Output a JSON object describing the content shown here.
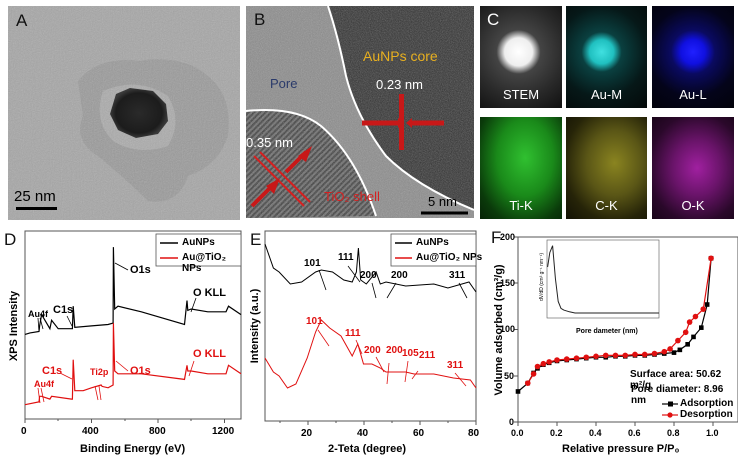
{
  "figure": {
    "panels": {
      "A": {
        "label": "A",
        "type": "TEM image",
        "scale_bar": "25 nm"
      },
      "B": {
        "label": "B",
        "type": "HRTEM image",
        "annotations": {
          "core": "AuNPs core",
          "pore": "Pore",
          "shell": "TiO₂ shell",
          "core_spacing": "0.23 nm",
          "shell_spacing": "0.35 nm"
        },
        "scale_bar": "5 nm",
        "colors": {
          "core_label": "#e8b020",
          "pore_label": "#2a3a6a",
          "shell_label": "#d42020",
          "arrow": "#c81818"
        }
      },
      "C": {
        "label": "C",
        "type": "EDS elemental mapping",
        "maps": [
          {
            "label": "STEM",
            "color": "#ffffff"
          },
          {
            "label": "Au-M",
            "color": "#20d8d8"
          },
          {
            "label": "Au-L",
            "color": "#1a1aff"
          },
          {
            "label": "Ti-K",
            "color": "#22cc22"
          },
          {
            "label": "C-K",
            "color": "#b8b020"
          },
          {
            "label": "O-K",
            "color": "#c020c0"
          }
        ]
      },
      "D": {
        "label": "D"
      },
      "E": {
        "label": "E"
      },
      "F": {
        "label": "F"
      }
    }
  },
  "chart_data": [
    {
      "panel": "D",
      "type": "line",
      "title": "",
      "xlabel": "Binding Energy (eV)",
      "ylabel": "XPS Intensity",
      "xlim": [
        0,
        1300
      ],
      "xticks": [
        "0",
        "400",
        "800",
        "1200"
      ],
      "legend": [
        "AuNPs",
        "Au@TiO₂ NPs"
      ],
      "legend_position": "upper right",
      "series": [
        {
          "name": "AuNPs",
          "color": "#000000",
          "annotations": [
            "Au4f",
            "C1s",
            "O1s",
            "O KLL"
          ],
          "x": [
            0,
            30,
            84,
            88,
            100,
            150,
            160,
            200,
            285,
            290,
            300,
            400,
            500,
            530,
            532,
            540,
            560,
            700,
            960,
            975,
            980,
            1000,
            1100,
            1210,
            1225,
            1300
          ],
          "y": [
            58,
            59,
            60,
            64,
            72,
            62,
            68,
            62,
            62,
            78,
            63,
            64,
            65,
            66,
            120,
            76,
            78,
            74,
            65,
            82,
            75,
            76,
            74,
            74,
            78,
            72
          ]
        },
        {
          "name": "Au@TiO₂ NPs",
          "color": "#e01010",
          "annotations": [
            "Au4f",
            "C1s",
            "Ti2p",
            "O1s",
            "O KLL"
          ],
          "x": [
            0,
            84,
            88,
            100,
            150,
            160,
            280,
            285,
            290,
            300,
            350,
            400,
            458,
            464,
            500,
            530,
            532,
            540,
            560,
            700,
            960,
            975,
            980,
            1000,
            1100,
            1210,
            1225,
            1300
          ],
          "y": [
            8,
            10,
            14,
            14,
            12,
            14,
            12,
            12,
            40,
            18,
            18,
            20,
            22,
            21,
            20,
            22,
            66,
            32,
            30,
            30,
            26,
            36,
            32,
            32,
            30,
            30,
            36,
            30
          ]
        }
      ]
    },
    {
      "panel": "E",
      "type": "line",
      "title": "",
      "xlabel": "2-Teta (degree)",
      "ylabel": "Intensity (a.u.)",
      "xlim": [
        5,
        80
      ],
      "xticks": [
        "20",
        "40",
        "60",
        "80"
      ],
      "legend": [
        "AuNPs",
        "Au@TiO₂ NPs"
      ],
      "legend_position": "upper right",
      "series": [
        {
          "name": "AuNPs",
          "color": "#000000",
          "peak_labels": [
            {
              "label": "101",
              "x": 23
            },
            {
              "label": "111",
              "x": 38
            },
            {
              "label": "200",
              "x": 44.5
            },
            {
              "label": "200",
              "x": 48
            },
            {
              "label": "311",
              "x": 77.5
            }
          ],
          "x": [
            5,
            8,
            10,
            14,
            18,
            23,
            25,
            29,
            33,
            36,
            37.5,
            38.2,
            39,
            41,
            44.5,
            46,
            48,
            55,
            65,
            70,
            77.5,
            80
          ],
          "y": [
            92,
            80,
            78,
            72,
            73,
            78,
            79,
            78,
            74,
            73,
            78,
            90,
            74,
            72,
            78,
            72,
            73,
            71,
            72,
            70,
            73,
            68
          ]
        },
        {
          "name": "Au@TiO₂ NPs",
          "color": "#e01010",
          "peak_labels": [
            {
              "label": "101",
              "x": 25
            },
            {
              "label": "111",
              "x": 38
            },
            {
              "label": "200",
              "x": 43
            },
            {
              "label": "200",
              "x": 48
            },
            {
              "label": "105",
              "x": 55
            },
            {
              "label": "211",
              "x": 56.5
            },
            {
              "label": "311",
              "x": 78
            }
          ],
          "x": [
            5,
            8,
            10,
            13,
            16,
            20,
            23,
            25,
            28,
            32,
            36,
            38,
            40,
            43,
            46,
            48,
            52,
            55,
            58,
            65,
            72,
            78,
            80
          ],
          "y": [
            35,
            28,
            26,
            20,
            22,
            35,
            48,
            54,
            50,
            46,
            36,
            42,
            32,
            32,
            30,
            28,
            28,
            28,
            27,
            27,
            25,
            24,
            20
          ]
        }
      ]
    },
    {
      "panel": "F",
      "type": "line",
      "title": "",
      "xlabel": "Relative pressure P/P₀",
      "ylabel": "Volume adsorbed (cm³/g)",
      "xlim": [
        0.0,
        1.0
      ],
      "ylim": [
        0,
        200
      ],
      "xticks": [
        "0.0",
        "0.2",
        "0.4",
        "0.6",
        "0.8",
        "1.0"
      ],
      "yticks": [
        "0",
        "50",
        "100",
        "150",
        "200"
      ],
      "annotations": [
        "Surface area: 50.62 m²/g",
        "Pore diameter: 8.96 nm"
      ],
      "legend": [
        "Adsorption",
        "Desorption"
      ],
      "legend_position": "lower right",
      "series": [
        {
          "name": "Adsorption",
          "color": "#000000",
          "marker": "square",
          "x": [
            0.0,
            0.05,
            0.08,
            0.1,
            0.13,
            0.16,
            0.2,
            0.25,
            0.3,
            0.35,
            0.4,
            0.45,
            0.5,
            0.55,
            0.6,
            0.65,
            0.7,
            0.75,
            0.8,
            0.83,
            0.87,
            0.9,
            0.94,
            0.97,
            0.99
          ],
          "y": [
            33,
            42,
            53,
            58,
            62,
            64,
            66,
            67,
            68,
            69,
            70,
            70,
            71,
            71,
            72,
            72,
            73,
            74,
            75,
            78,
            84,
            92,
            102,
            127,
            177
          ]
        },
        {
          "name": "Desorption",
          "color": "#e01010",
          "marker": "circle",
          "x": [
            0.05,
            0.08,
            0.1,
            0.13,
            0.16,
            0.2,
            0.25,
            0.3,
            0.35,
            0.4,
            0.45,
            0.5,
            0.55,
            0.6,
            0.65,
            0.7,
            0.75,
            0.78,
            0.82,
            0.86,
            0.88,
            0.91,
            0.95,
            0.99
          ],
          "y": [
            42,
            52,
            60,
            63,
            65,
            67,
            68,
            69,
            70,
            71,
            72,
            72,
            72,
            73,
            73,
            74,
            76,
            79,
            88,
            97,
            108,
            114,
            122,
            177
          ]
        }
      ],
      "inset": {
        "type": "line",
        "xlabel": "Pore dameter (nm)",
        "ylabel": "dV/dD (cm³ g⁻¹ nm⁻¹)",
        "xlim": [
          0,
          200
        ],
        "ylim": [
          0.0,
          0.012
        ],
        "xticks": [
          "0",
          "50",
          "100",
          "150",
          "200"
        ],
        "yticks": [
          "0.000",
          "0.002",
          "0.004",
          "0.006",
          "0.008",
          "0.010",
          "0.012"
        ],
        "x": [
          1,
          5,
          10,
          15,
          20,
          25,
          30,
          40,
          50,
          100,
          150,
          200
        ],
        "y": [
          0.008,
          0.0105,
          0.0117,
          0.006,
          0.002,
          0.0008,
          0.0005,
          0.0002,
          0.0,
          0.0,
          0.0,
          0.0
        ]
      }
    }
  ]
}
